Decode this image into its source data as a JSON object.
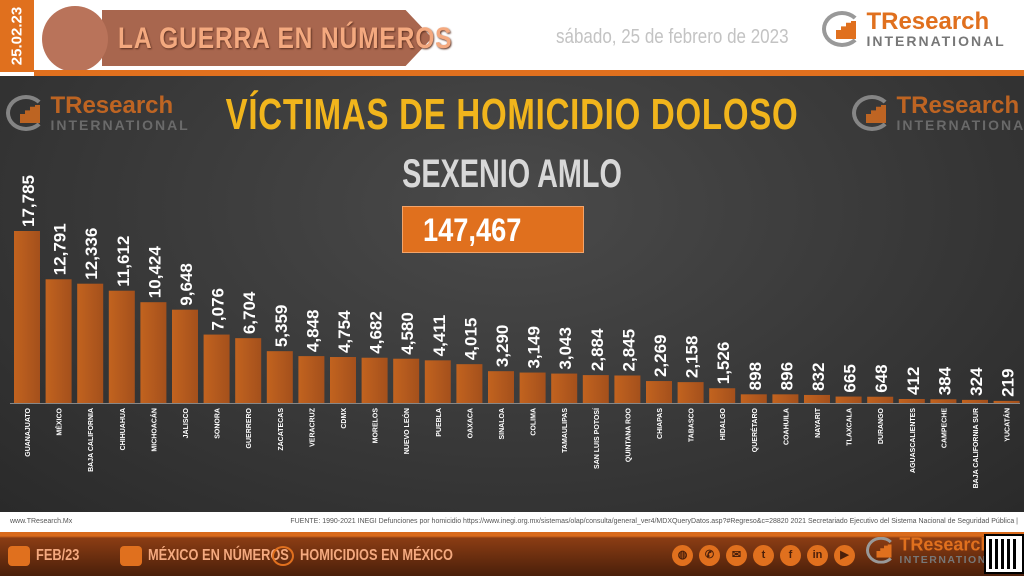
{
  "header": {
    "date_tab": "25.02.23",
    "banner_title": "LA GUERRA EN NÚMEROS",
    "date_text": "sábado, 25 de febrero de 2023",
    "logo": {
      "name": "TResearch",
      "sub": "INTERNATIONAL"
    }
  },
  "chart_data": {
    "type": "bar",
    "title": "VÍCTIMAS DE HOMICIDIO DOLOSO",
    "subtitle": "SEXENIO AMLO",
    "total": "147,467",
    "categories": [
      "GUANAJUATO",
      "MÉXICO",
      "BAJA CALIFORNIA",
      "CHIHUAHUA",
      "MICHOACÁN",
      "JALISCO",
      "SONORA",
      "GUERRERO",
      "ZACATECAS",
      "VERACRUZ",
      "CDMX",
      "MORELOS",
      "NUEVO LEÓN",
      "PUEBLA",
      "OAXACA",
      "SINALOA",
      "COLIMA",
      "TAMAULIPAS",
      "SAN LUIS POTOSÍ",
      "QUINTANA ROO",
      "CHIAPAS",
      "TABASCO",
      "HIDALGO",
      "QUERÉTARO",
      "COAHUILA",
      "NAYARIT",
      "TLAXCALA",
      "DURANGO",
      "AGUASCALIENTES",
      "CAMPECHE",
      "BAJA CALIFORNIA SUR",
      "YUCATÁN"
    ],
    "values": [
      17785,
      12791,
      12336,
      11612,
      10424,
      9648,
      7076,
      6704,
      5359,
      4848,
      4754,
      4682,
      4580,
      4411,
      4015,
      3290,
      3149,
      3043,
      2884,
      2845,
      2269,
      2158,
      1526,
      898,
      896,
      832,
      665,
      648,
      412,
      384,
      324,
      219
    ],
    "data_labels": [
      "17,785",
      "12,791",
      "12,336",
      "11,612",
      "10,424",
      "9,648",
      "7,076",
      "6,704",
      "5,359",
      "4,848",
      "4,754",
      "4,682",
      "4,580",
      "4,411",
      "4,015",
      "3,290",
      "3,149",
      "3,043",
      "2,884",
      "2,845",
      "2,269",
      "2,158",
      "1,526",
      "898",
      "896",
      "832",
      "665",
      "648",
      "412",
      "384",
      "324",
      "219"
    ],
    "bar_color": "#a4501c",
    "grid": false,
    "legend": "none"
  },
  "source": {
    "website": "www.TResearch.Mx",
    "text": "FUENTE: 1990-2021 INEGI Defunciones por homicidio https://www.inegi.org.mx/sistemas/olap/consulta/general_ver4/MDXQueryDatos.asp?#Regreso&c=28820   2021 Secretariado Ejecutivo del Sistema Nacional de Seguridad Pública |"
  },
  "footer": {
    "items": [
      "FEB/23",
      "MÉXICO EN NÚMEROS",
      "HOMICIDIOS EN MÉXICO"
    ],
    "social": [
      "globe-icon",
      "whatsapp-icon",
      "email-icon",
      "twitter-icon",
      "facebook-icon",
      "linkedin-icon",
      "youtube-icon"
    ]
  },
  "colors": {
    "accent": "#e0701e",
    "title": "#f1b51c",
    "background": "#3a3a3a"
  }
}
